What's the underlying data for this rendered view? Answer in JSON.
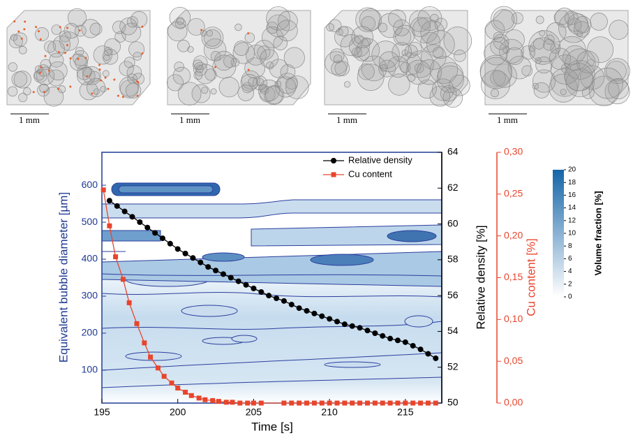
{
  "scale_bars": [
    "1 mm",
    "1 mm",
    "1 mm",
    "1 mm"
  ],
  "chart_data": {
    "type": "contour-line",
    "x_label": "Time [s]",
    "y_label": "Equivalent bubble diameter [µm]",
    "y2_label": "Relative density [%]",
    "y3_label": "Cu content [%]",
    "xlim": [
      195,
      217.4
    ],
    "xticks": [
      195,
      200,
      205,
      210,
      215
    ],
    "ylim": [
      11,
      689
    ],
    "yticks": [
      100,
      200,
      300,
      400,
      500,
      600
    ],
    "y2lim": [
      50,
      64
    ],
    "y2ticks": [
      50,
      52,
      54,
      56,
      58,
      60,
      62,
      64
    ],
    "y3lim": [
      0,
      0.3
    ],
    "y3ticks": [
      {
        "value": 0,
        "label": "0,00"
      },
      {
        "value": 0.05,
        "label": "0,05"
      },
      {
        "value": 0.1,
        "label": "0,10"
      },
      {
        "value": 0.15,
        "label": "0,15"
      },
      {
        "value": 0.2,
        "label": "0,20"
      },
      {
        "value": 0.25,
        "label": "0,25"
      },
      {
        "value": 0.3,
        "label": "0,30"
      }
    ],
    "colorbar": {
      "label": "Volume fraction [%]",
      "lim": [
        0,
        20
      ],
      "ticks": [
        0,
        2,
        4,
        6,
        8,
        10,
        12,
        14,
        16,
        18,
        20
      ],
      "colors": [
        "#ffffff",
        "#1565a8"
      ]
    },
    "legend": "top-right",
    "series": [
      {
        "name": "Relative density",
        "color": "#000000",
        "axis": "y2",
        "marker": "circle",
        "x": [
          195.5,
          196,
          196.5,
          197,
          197.5,
          198,
          198.5,
          199,
          199.5,
          200,
          200.5,
          201,
          201.5,
          202,
          202.5,
          203,
          203.5,
          204,
          204.5,
          205,
          205.5,
          206,
          206.5,
          207,
          207.5,
          208,
          208.5,
          209,
          209.5,
          210,
          210.5,
          211,
          211.5,
          212,
          212.5,
          213,
          213.5,
          214,
          214.5,
          215,
          215.5,
          216,
          216.5,
          217
        ],
        "values": [
          61.3,
          61.0,
          60.7,
          60.4,
          60.1,
          59.8,
          59.5,
          59.2,
          58.9,
          58.6,
          58.35,
          58.1,
          57.85,
          57.6,
          57.4,
          57.2,
          57.0,
          56.8,
          56.6,
          56.4,
          56.2,
          56.0,
          55.85,
          55.7,
          55.5,
          55.3,
          55.15,
          55.0,
          54.85,
          54.7,
          54.55,
          54.4,
          54.3,
          54.2,
          54.05,
          53.9,
          53.75,
          53.6,
          53.5,
          53.4,
          53.2,
          53.0,
          52.75,
          52.5
        ]
      },
      {
        "name": "Cu content",
        "color": "#e8452c",
        "axis": "y3",
        "marker": "square",
        "x": [
          195.1,
          195.5,
          195.9,
          196.4,
          196.8,
          197.3,
          197.8,
          198.2,
          198.7,
          199.1,
          199.6,
          200,
          200.5,
          200.9,
          201.4,
          201.8,
          202.3,
          202.7,
          203.2,
          203.6,
          204.1,
          204.6,
          205,
          205.5,
          207,
          207.5,
          208,
          208.5,
          209,
          209.5,
          210,
          210.5,
          211,
          211.5,
          212,
          212.5,
          213,
          213.5,
          214,
          214.5,
          215,
          215.5,
          216,
          216.5,
          217
        ],
        "values": [
          0.255,
          0.212,
          0.175,
          0.148,
          0.12,
          0.095,
          0.072,
          0.055,
          0.042,
          0.032,
          0.024,
          0.018,
          0.013,
          0.009,
          0.006,
          0.004,
          0.003,
          0.002,
          0.001,
          0.001,
          0,
          0,
          0,
          0,
          0,
          0,
          0,
          0,
          0,
          0,
          0,
          0,
          0,
          0,
          0,
          0,
          0,
          0,
          0,
          0,
          0,
          0,
          0,
          0,
          0
        ]
      }
    ]
  }
}
